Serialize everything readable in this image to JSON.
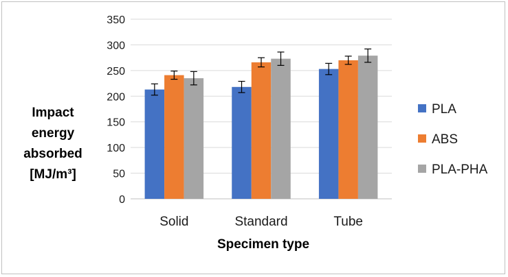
{
  "chart_data": {
    "type": "bar",
    "categories": [
      "Solid",
      "Standard",
      "Tube"
    ],
    "series": [
      {
        "name": "PLA",
        "color": "#4472C4",
        "values": [
          213,
          218,
          253
        ],
        "errors": [
          11,
          11,
          11
        ]
      },
      {
        "name": "ABS",
        "color": "#ED7D31",
        "values": [
          241,
          266,
          270
        ],
        "errors": [
          8,
          9,
          8
        ]
      },
      {
        "name": "PLA-PHA",
        "color": "#A5A5A5",
        "values": [
          235,
          273,
          279
        ],
        "errors": [
          13,
          13,
          13
        ]
      }
    ],
    "ylabel_lines": [
      "Impact",
      "energy",
      "absorbed",
      "[MJ/m³]"
    ],
    "xlabel": "Specimen type",
    "ylim": [
      0,
      350
    ],
    "yticks": [
      0,
      50,
      100,
      150,
      200,
      250,
      300,
      350
    ],
    "ytick_labels": [
      "0",
      "50",
      "100",
      "150",
      "200",
      "250",
      "300",
      "350"
    ],
    "grid": true,
    "legend_position": "right"
  }
}
